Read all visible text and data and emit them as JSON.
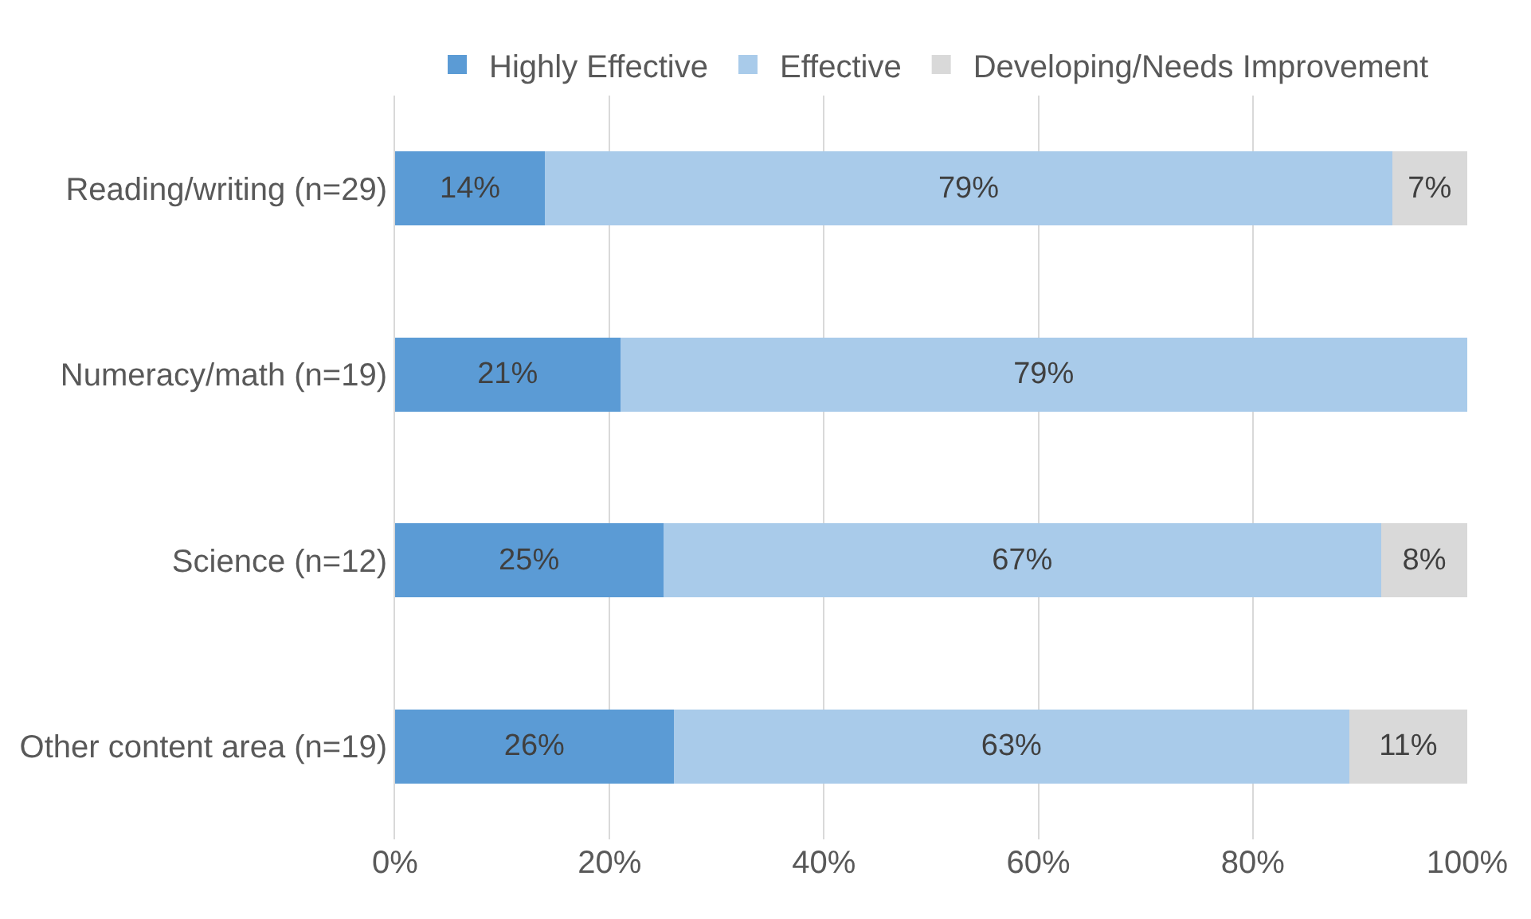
{
  "chart_data": {
    "type": "bar",
    "orientation": "horizontal",
    "stacked": true,
    "categories": [
      "Reading/writing (n=29)",
      "Numeracy/math (n=19)",
      "Science (n=12)",
      "Other content area (n=19)"
    ],
    "series": [
      {
        "name": "Highly Effective",
        "color": "#5b9bd5",
        "values": [
          14,
          21,
          25,
          26
        ],
        "value_labels": [
          "14%",
          "21%",
          "25%",
          "26%"
        ]
      },
      {
        "name": "Effective",
        "color": "#a9cbea",
        "values": [
          79,
          79,
          67,
          63
        ],
        "value_labels": [
          "79%",
          "79%",
          "67%",
          "63%"
        ]
      },
      {
        "name": "Developing/Needs Improvement",
        "color": "#d9d9d9",
        "values": [
          7,
          null,
          8,
          11
        ],
        "value_labels": [
          "7%",
          null,
          "8%",
          "11%"
        ]
      }
    ],
    "xlim": [
      0,
      100
    ],
    "xticks": [
      {
        "value": 0,
        "label": "0%"
      },
      {
        "value": 20,
        "label": "20%"
      },
      {
        "value": 40,
        "label": "40%"
      },
      {
        "value": 60,
        "label": "60%"
      },
      {
        "value": 80,
        "label": "80%"
      },
      {
        "value": 100,
        "label": "100%"
      }
    ],
    "grid": "x",
    "legend": "top"
  }
}
